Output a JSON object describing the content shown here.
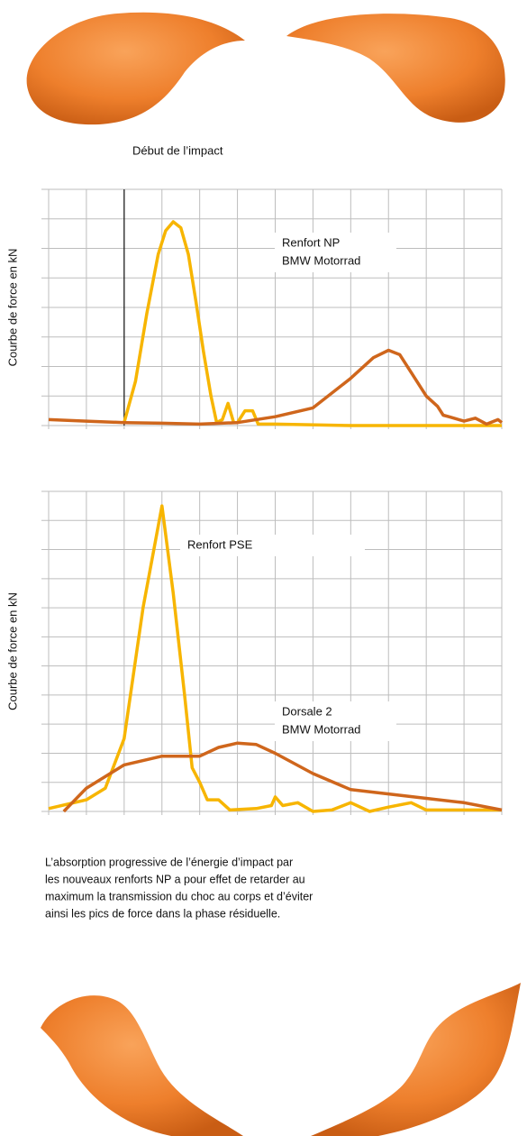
{
  "chart_data": [
    {
      "type": "line",
      "marker_label": "Début de l’impact",
      "marker_x": 2,
      "ylabel": "Courbe de force en kN",
      "annotations": [
        [
          "Renfort NP",
          "BMW Motorrad"
        ]
      ],
      "xlim": [
        0,
        12
      ],
      "xticks": [
        0,
        1,
        2,
        3,
        4,
        5,
        6,
        7,
        8,
        9,
        10,
        11,
        12
      ],
      "ylim": [
        0,
        8
      ],
      "yticks": [
        0,
        1,
        2,
        3,
        4,
        5,
        6,
        7,
        8
      ],
      "grid": true,
      "series": [
        {
          "color": "#f7b500",
          "x": [
            2,
            2.3,
            2.6,
            2.9,
            3.1,
            3.3,
            3.5,
            3.7,
            3.9,
            4.1,
            4.3,
            4.45,
            4.6,
            4.75,
            4.9,
            5.0,
            5.2,
            5.4,
            5.55,
            6,
            8,
            10,
            12
          ],
          "values": [
            0.1,
            1.5,
            3.8,
            5.8,
            6.6,
            6.9,
            6.7,
            5.8,
            4.2,
            2.5,
            1.0,
            0.1,
            0.2,
            0.75,
            0.1,
            0.1,
            0.5,
            0.5,
            0.05,
            0.05,
            0,
            0,
            0
          ]
        },
        {
          "color": "#cf661c",
          "x": [
            0,
            1,
            2,
            3,
            4,
            5,
            6,
            7,
            8,
            8.6,
            9,
            9.3,
            9.6,
            10,
            10.3,
            10.45,
            10.6,
            11,
            11.3,
            11.6,
            11.9,
            12
          ],
          "values": [
            0.2,
            0.15,
            0.1,
            0.08,
            0.05,
            0.1,
            0.3,
            0.6,
            1.6,
            2.3,
            2.55,
            2.4,
            1.8,
            1.0,
            0.65,
            0.35,
            0.3,
            0.15,
            0.25,
            0.05,
            0.2,
            0.1
          ]
        }
      ]
    },
    {
      "type": "line",
      "ylabel": "Courbe de force en kN",
      "annotations": [
        [
          "Renfort PSE"
        ],
        [
          "Dorsale 2",
          "BMW Motorrad"
        ]
      ],
      "xlim": [
        0,
        12
      ],
      "xticks": [
        0,
        1,
        2,
        3,
        4,
        5,
        6,
        7,
        8,
        9,
        10,
        11,
        12
      ],
      "ylim": [
        0,
        11
      ],
      "yticks": [
        0,
        1,
        2,
        3,
        4,
        5,
        6,
        7,
        8,
        9,
        10,
        11
      ],
      "grid": true,
      "series": [
        {
          "color": "#f7b500",
          "x": [
            0,
            1,
            1.5,
            2,
            2.5,
            3.0,
            3.3,
            3.6,
            3.8,
            4,
            4.2,
            4.5,
            4.8,
            5.5,
            5.9,
            6,
            6.2,
            6.6,
            7,
            7.5,
            8,
            8.5,
            9,
            9.6,
            10,
            12
          ],
          "values": [
            0.1,
            0.4,
            0.8,
            2.5,
            7,
            10.5,
            7.5,
            4,
            1.5,
            1.0,
            0.4,
            0.4,
            0.05,
            0.1,
            0.2,
            0.5,
            0.2,
            0.3,
            0,
            0.05,
            0.3,
            0,
            0.15,
            0.3,
            0.05,
            0.05
          ]
        },
        {
          "color": "#cf661c",
          "x": [
            0.4,
            1,
            2,
            3,
            4,
            4.5,
            5,
            5.5,
            6,
            7,
            8,
            10,
            11,
            12
          ],
          "values": [
            0,
            0.8,
            1.6,
            1.9,
            1.9,
            2.2,
            2.35,
            2.3,
            2.0,
            1.3,
            0.75,
            0.45,
            0.3,
            0.05
          ]
        }
      ]
    }
  ],
  "body_text": [
    "L’absorption progressive de l’énergie d’impact par",
    "les nouveaux renforts NP a pour effet de retarder au",
    "maximum la transmission du choc au corps et d’éviter",
    "ainsi les pics de force dans la phase résiduelle."
  ]
}
